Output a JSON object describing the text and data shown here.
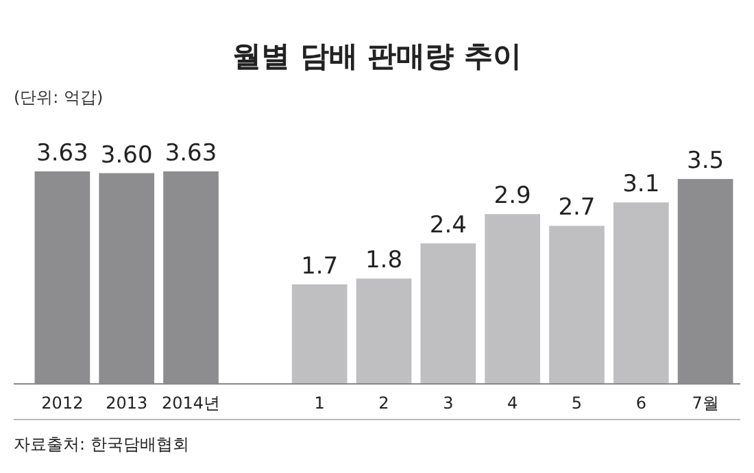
{
  "chart_data": {
    "type": "bar",
    "title": "월별 담배 판매량 추이",
    "subtitle": "(단위: 억갑)",
    "categories": [
      "2012",
      "2013",
      "2014년",
      null,
      "1",
      "2",
      "3",
      "4",
      "5",
      "6",
      "7월"
    ],
    "values": [
      3.63,
      3.6,
      3.63,
      null,
      1.7,
      1.8,
      2.4,
      2.9,
      2.7,
      3.1,
      3.5
    ],
    "value_labels": [
      "3.63",
      "3.60",
      "3.63",
      null,
      "1.7",
      "1.8",
      "2.4",
      "2.9",
      "2.7",
      "3.1",
      "3.5"
    ],
    "colors": [
      "#8d8d8f",
      "#8d8d8f",
      "#8d8d8f",
      null,
      "#bfbfc1",
      "#bfbfc1",
      "#bfbfc1",
      "#bfbfc1",
      "#bfbfc1",
      "#bfbfc1",
      "#8d8d8f"
    ],
    "annotations": [
      "자료출처: 한국담배협회"
    ]
  }
}
